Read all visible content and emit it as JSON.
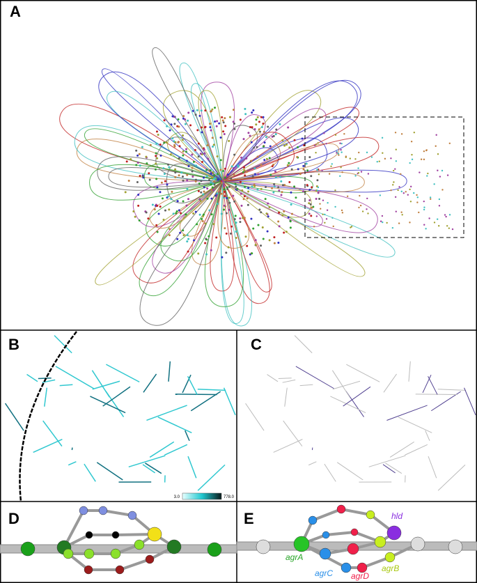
{
  "panels": {
    "a": {
      "label": "A"
    },
    "b": {
      "label": "B",
      "colorbar": {
        "min_label": "3.0",
        "max_label": "778.0"
      }
    },
    "c": {
      "label": "C"
    },
    "d": {
      "label": "D"
    },
    "e": {
      "label": "E",
      "genes": [
        "hld",
        "agrA",
        "agrC",
        "agrD",
        "agrB"
      ]
    }
  }
}
